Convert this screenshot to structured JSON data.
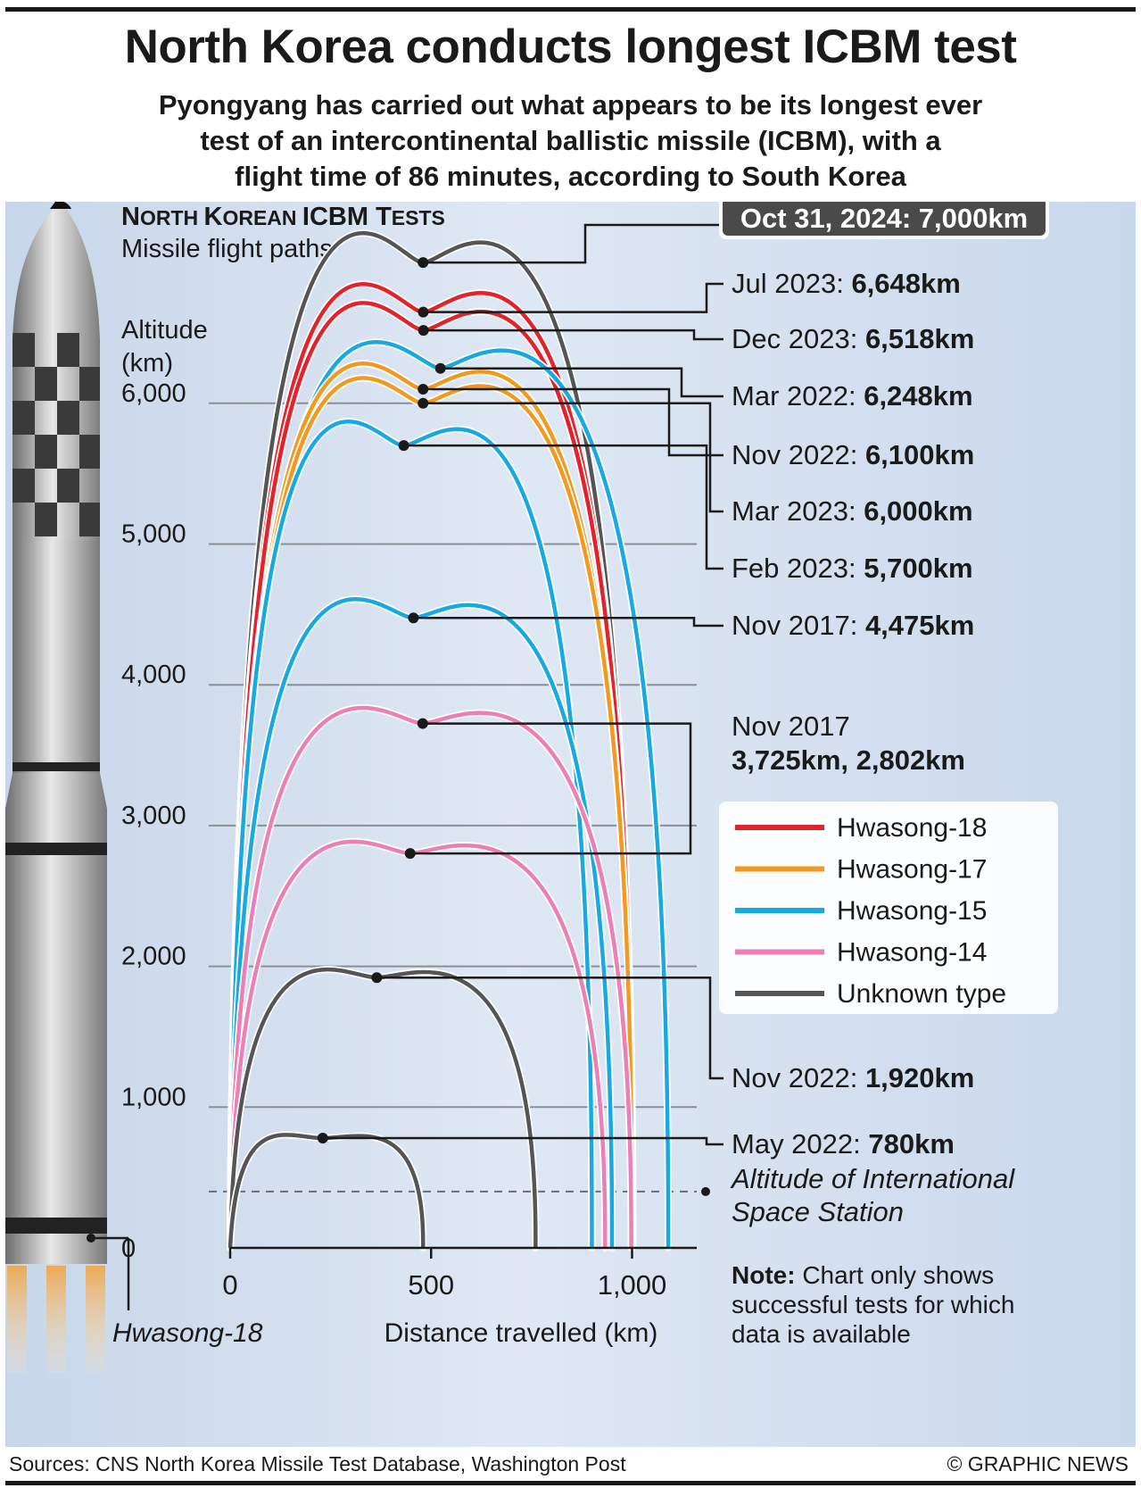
{
  "header": {
    "title": "North Korea conducts longest ICBM test",
    "subtitle_lines": [
      "Pyongyang has carried out what appears to be its longest ever",
      "test of an intercontinental ballistic missile (ICBM), with a",
      "flight time of 86 minutes, according to South Korea"
    ]
  },
  "chart_heading": {
    "title_cap1": "N",
    "title_small1": "ORTH ",
    "title_cap2": "K",
    "title_small2": "OREAN ",
    "title_cap3": "ICBM T",
    "title_small3": "ESTS",
    "subtitle": "Missile flight paths"
  },
  "colors": {
    "Hwasong-18": "#e3222b",
    "Hwasong-17": "#f29a1f",
    "Hwasong-15": "#17a9e1",
    "Hwasong-14": "#ec7fb5",
    "Unknown type": "#555555",
    "highlight_box": "#4a4a4a"
  },
  "chart_data": {
    "type": "line",
    "ylabel_lines": [
      "Altitude",
      "(km)"
    ],
    "xlabel": "Distance travelled (km)",
    "y_ticks": [
      "0",
      "1,000",
      "2,000",
      "3,000",
      "4,000",
      "5,000",
      "6,000"
    ],
    "x_ticks": [
      "0",
      "500",
      "1,000"
    ],
    "ylim": [
      0,
      7000
    ],
    "xlim": [
      0,
      1100
    ],
    "grid": true,
    "legend_position": "right",
    "reference_line": {
      "altitude": 400,
      "label_lines": [
        "Altitude of International",
        "Space Station"
      ]
    },
    "series": [
      {
        "label_date": "Oct 31, 2024:",
        "label_value": "7,000km",
        "type": "Unknown type",
        "altitude": 7000,
        "distance": 1000,
        "highlight": true
      },
      {
        "label_date": "Jul 2023:",
        "label_value": "6,648km",
        "type": "Hwasong-18",
        "altitude": 6648,
        "distance": 1001
      },
      {
        "label_date": "Dec 2023:",
        "label_value": "6,518km",
        "type": "Hwasong-18",
        "altitude": 6518,
        "distance": 1002
      },
      {
        "label_date": "Mar 2022:",
        "label_value": "6,248km",
        "type": "Hwasong-15",
        "altitude": 6248,
        "distance": 1090
      },
      {
        "label_date": "Nov 2022:",
        "label_value": "6,100km",
        "type": "Hwasong-17",
        "altitude": 6100,
        "distance": 1000
      },
      {
        "label_date": "Mar 2023:",
        "label_value": "6,000km",
        "type": "Hwasong-17",
        "altitude": 6000,
        "distance": 1000
      },
      {
        "label_date": "Feb 2023:",
        "label_value": "5,700km",
        "type": "Hwasong-15",
        "altitude": 5700,
        "distance": 900
      },
      {
        "label_date": "Nov 2017:",
        "label_value": "4,475km",
        "type": "Hwasong-15",
        "altitude": 4475,
        "distance": 950
      },
      {
        "label_date": "Nov 2017",
        "label_value": "3,725km, 2,802km",
        "type": "Hwasong-14",
        "altitude": 3725,
        "distance": 998
      },
      {
        "label_date": "",
        "label_value": "",
        "type": "Hwasong-14",
        "altitude": 2802,
        "distance": 933
      },
      {
        "label_date": "Nov 2022:",
        "label_value": "1,920km",
        "type": "Unknown type",
        "altitude": 1920,
        "distance": 760
      },
      {
        "label_date": "May 2022:",
        "label_value": "780km",
        "type": "Unknown type",
        "altitude": 780,
        "distance": 480
      }
    ],
    "legend": [
      "Hwasong-18",
      "Hwasong-17",
      "Hwasong-15",
      "Hwasong-14",
      "Unknown type"
    ]
  },
  "missile_label": "Hwasong-18",
  "note": {
    "bold": "Note:",
    "text_lines": [
      " Chart only shows",
      "successful tests for which",
      "data is available"
    ]
  },
  "footer": {
    "sources": "Sources: CNS North Korea Missile Test Database, Washington Post",
    "credit": "© GRAPHIC NEWS"
  }
}
